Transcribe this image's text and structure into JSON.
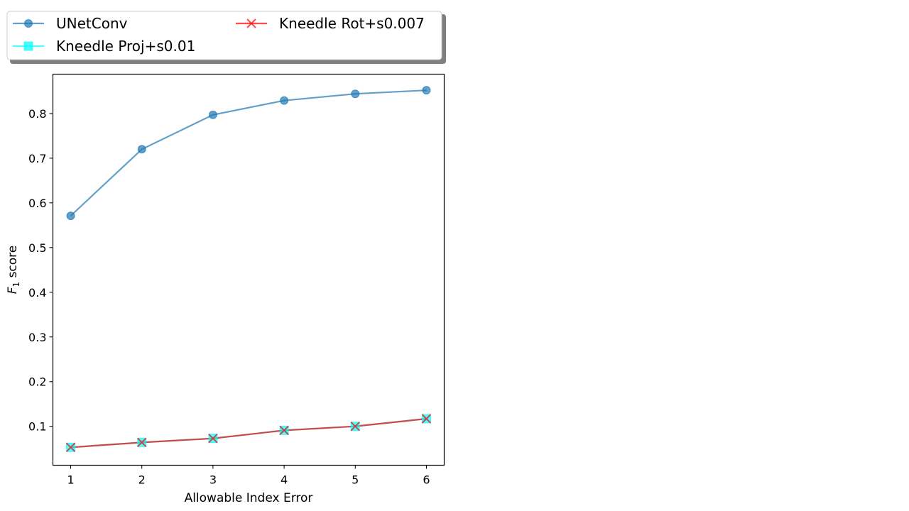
{
  "chart_data": {
    "type": "line",
    "x": [
      1,
      2,
      3,
      4,
      5,
      6
    ],
    "xlabel": "Allowable Index Error",
    "ylabel_main": "F",
    "ylabel_sub": "1",
    "ylabel_rest": " score",
    "xlim": [
      0.75,
      6.25
    ],
    "ylim": [
      0.013,
      0.888
    ],
    "xticks": [
      "1",
      "2",
      "3",
      "4",
      "5",
      "6"
    ],
    "yticks": [
      "0.1",
      "0.2",
      "0.3",
      "0.4",
      "0.5",
      "0.6",
      "0.7",
      "0.8"
    ],
    "grid": false,
    "legend_position": "top-left, outside above plot",
    "series": [
      {
        "name": "UNetConv",
        "color": "#1f77b4",
        "marker": "circle",
        "values": [
          0.571,
          0.72,
          0.797,
          0.829,
          0.844,
          0.852
        ]
      },
      {
        "name": "Kneedle Proj+s0.01",
        "color": "#00ffff",
        "marker": "square",
        "values": [
          0.053,
          0.064,
          0.073,
          0.091,
          0.1,
          0.117
        ]
      },
      {
        "name": "Kneedle Rot+s0.007",
        "color": "#ff0000",
        "marker": "x",
        "values": [
          0.053,
          0.064,
          0.073,
          0.091,
          0.1,
          0.117
        ]
      }
    ]
  }
}
